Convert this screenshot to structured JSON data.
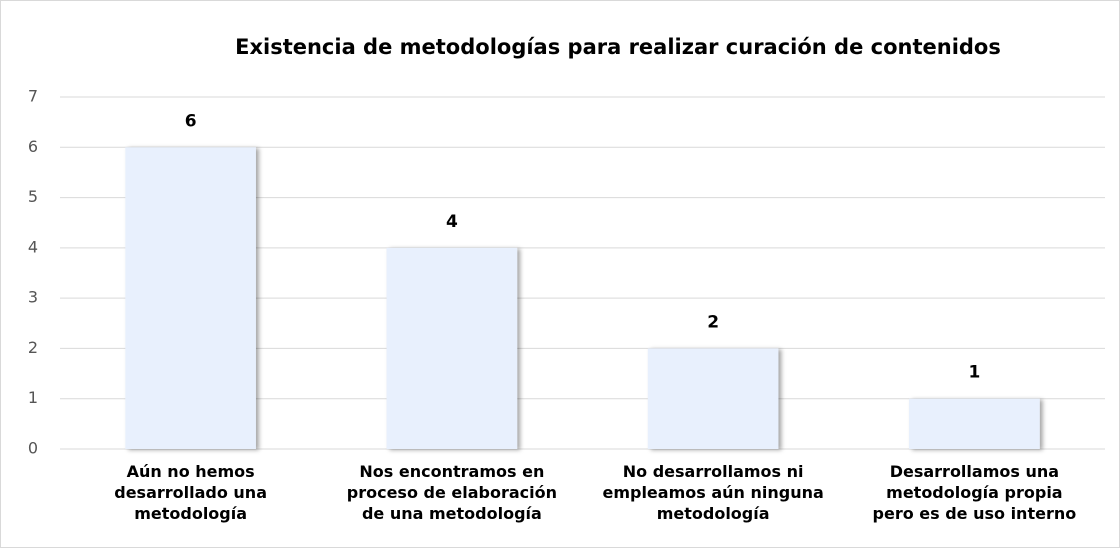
{
  "chart_data": {
    "type": "bar",
    "title": "Existencia de metodologías para realizar curación de contenidos",
    "categories": [
      "Aún no hemos\ndesarrollado una\nmetodología",
      "Nos encontramos en\nproceso de elaboración\nde una metodología",
      "No desarrollamos ni\nempleamos aún ninguna\nmetodología",
      "Desarrollamos una\nmetodología propia\npero es de uso interno"
    ],
    "values": [
      6,
      4,
      2,
      1
    ],
    "color": "#e8f0fd",
    "ylim": [
      0,
      7
    ],
    "yticks": [
      0,
      1,
      2,
      3,
      4,
      5,
      6,
      7
    ],
    "grid": true
  }
}
